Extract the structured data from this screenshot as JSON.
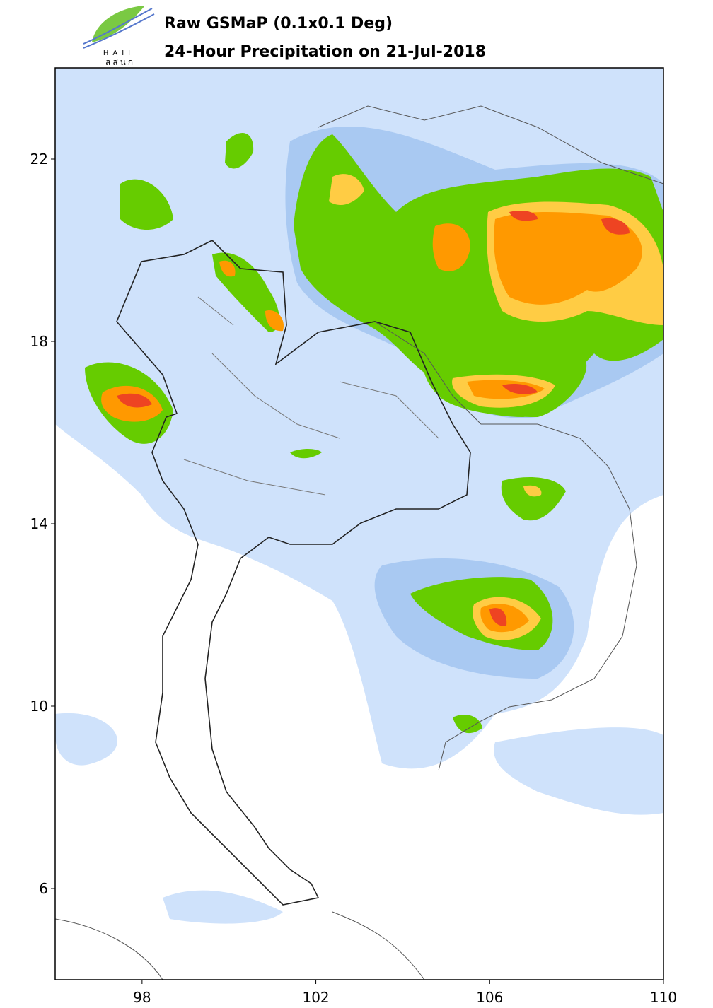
{
  "logo": {
    "name": "HAII",
    "thai": "สสนก"
  },
  "title": "Raw GSMaP (0.1x0.1 Deg)",
  "subtitle": "24-Hour Precipitation on 21-Jul-2018",
  "map": {
    "xlim": [
      96,
      110
    ],
    "ylim": [
      4,
      24
    ],
    "xticks": [
      98,
      102,
      106,
      110
    ],
    "yticks": [
      6,
      10,
      14,
      18,
      22
    ]
  }
}
